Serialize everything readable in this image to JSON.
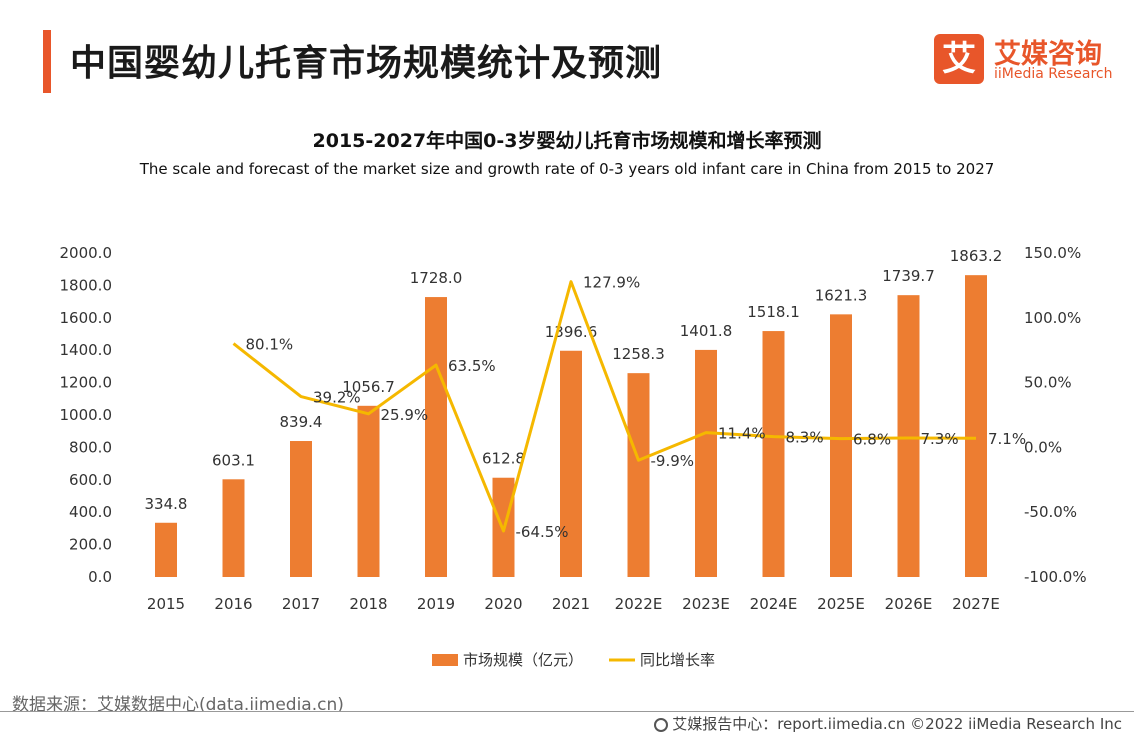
{
  "header": {
    "title": "中国婴幼儿托育市场规模统计及预测",
    "logo_mark": "艾",
    "logo_cn": "艾媒咨询",
    "logo_en": "iiMedia Research"
  },
  "colors": {
    "accent": "#e8562a",
    "bar": "#ed7d31",
    "line": "#f5b800"
  },
  "chart_data": {
    "type": "bar",
    "title": "2015-2027年中国0-3岁婴幼儿托育市场规模和增长率预测",
    "subtitle": "The scale and forecast of the market size and growth rate of 0-3 years old infant care in China from 2015 to 2027",
    "categories": [
      "2015",
      "2016",
      "2017",
      "2018",
      "2019",
      "2020",
      "2021",
      "2022E",
      "2023E",
      "2024E",
      "2025E",
      "2026E",
      "2027E"
    ],
    "series": [
      {
        "name": "市场规模（亿元）",
        "type": "bar",
        "axis": "left",
        "values": [
          334.8,
          603.1,
          839.4,
          1056.7,
          1728.0,
          612.8,
          1396.6,
          1258.3,
          1401.8,
          1518.1,
          1621.3,
          1739.7,
          1863.2
        ],
        "labels": [
          "334.8",
          "603.1",
          "839.4",
          "1056.7",
          "1728.0",
          "612.8",
          "1396.6",
          "1258.3",
          "1401.8",
          "1518.1",
          "1621.3",
          "1739.7",
          "1863.2"
        ]
      },
      {
        "name": "同比增长率",
        "type": "line",
        "axis": "right",
        "values": [
          null,
          80.1,
          39.2,
          25.9,
          63.5,
          -64.5,
          127.9,
          -9.9,
          11.4,
          8.3,
          6.8,
          7.3,
          7.1
        ],
        "labels": [
          "",
          "80.1%",
          "39.2%",
          "25.9%",
          "63.5%",
          "-64.5%",
          "127.9%",
          "-9.9%",
          "11.4%",
          "8.3%",
          "6.8%",
          "7.3%",
          "7.1%"
        ]
      }
    ],
    "y_left": {
      "min": 0,
      "max": 2000,
      "ticks": [
        "0.0",
        "200.0",
        "400.0",
        "600.0",
        "800.0",
        "1000.0",
        "1200.0",
        "1400.0",
        "1600.0",
        "1800.0",
        "2000.0"
      ]
    },
    "y_right": {
      "min": -100,
      "max": 150,
      "ticks": [
        "-100.0%",
        "-50.0%",
        "0.0%",
        "50.0%",
        "100.0%",
        "150.0%"
      ]
    },
    "grid": false,
    "legend_position": "bottom"
  },
  "source": "数据来源：艾媒数据中心(data.iimedia.cn)",
  "footer": "艾媒报告中心：report.iimedia.cn   ©2022  iiMedia Research  Inc"
}
